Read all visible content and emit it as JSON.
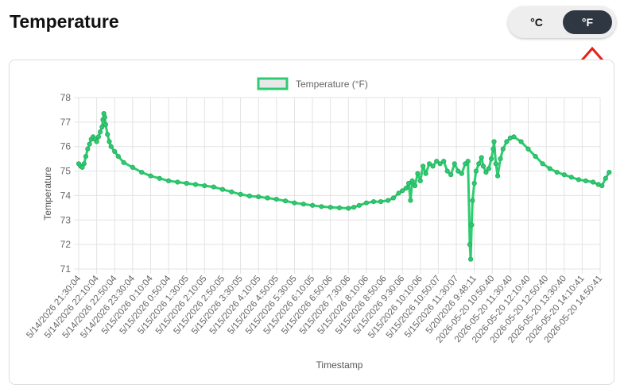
{
  "header": {
    "title": "Temperature",
    "unit_celsius": "°C",
    "unit_fahrenheit": "°F",
    "selected_unit": "°F"
  },
  "colors": {
    "series_line": "#2ecc71",
    "series_point": "#27ae60",
    "toggle_active_bg": "#2f3742",
    "annotation_arrow": "#e3201b"
  },
  "annotation": {
    "icon": "up-arrow-icon"
  },
  "chart_data": {
    "type": "line",
    "xlabel": "Timestamp",
    "ylabel": "Temperature",
    "ylim": [
      71,
      78
    ],
    "yticks": [
      71,
      72,
      73,
      74,
      75,
      76,
      77,
      78
    ],
    "grid": true,
    "legend_position": "top",
    "categories": [
      "5/14/2026  21:30:04",
      "5/14/2026  22:10:04",
      "5/14/2026  22:50:04",
      "5/14/2026  23:30:04",
      "5/15/2026  0:10:04",
      "5/15/2026  0:50:04",
      "5/15/2026  1:30:05",
      "5/15/2026  2:10:05",
      "5/15/2026  2:50:05",
      "5/15/2026  3:30:05",
      "5/15/2026  4:10:05",
      "5/15/2026  4:50:05",
      "5/15/2026  5:30:05",
      "5/15/2026  6:10:05",
      "5/15/2026  6:50:06",
      "5/15/2026  7:30:06",
      "5/15/2026  8:10:06",
      "5/15/2026  8:50:06",
      "5/15/2026  9:30:06",
      "5/15/2026  10:10:06",
      "5/15/2026  10:50:07",
      "5/15/2026  11:30:07",
      "5/20/2026  9:48:11",
      "2026-05-20 10:50:40",
      "2026-05-20 11:30:40",
      "2026-05-20 12:10:40",
      "2026-05-20 12:50:40",
      "2026-05-20 13:30:40",
      "2026-05-20 14:10:41",
      "2026-05-20 14:50:41"
    ],
    "series": [
      {
        "name": "Temperature (°F)",
        "points": [
          [
            0,
            75.3
          ],
          [
            0.1,
            75.2
          ],
          [
            0.2,
            75.15
          ],
          [
            0.3,
            75.3
          ],
          [
            0.4,
            75.6
          ],
          [
            0.5,
            75.9
          ],
          [
            0.6,
            76.1
          ],
          [
            0.7,
            76.3
          ],
          [
            0.8,
            76.4
          ],
          [
            0.9,
            76.3
          ],
          [
            1.0,
            76.2
          ],
          [
            1.1,
            76.4
          ],
          [
            1.2,
            76.6
          ],
          [
            1.3,
            76.8
          ],
          [
            1.35,
            77.1
          ],
          [
            1.4,
            77.35
          ],
          [
            1.45,
            77.2
          ],
          [
            1.5,
            76.9
          ],
          [
            1.6,
            76.5
          ],
          [
            1.7,
            76.2
          ],
          [
            1.8,
            76.0
          ],
          [
            2.0,
            75.8
          ],
          [
            2.2,
            75.6
          ],
          [
            2.5,
            75.35
          ],
          [
            3.0,
            75.15
          ],
          [
            3.5,
            74.95
          ],
          [
            4.0,
            74.8
          ],
          [
            4.5,
            74.7
          ],
          [
            5.0,
            74.6
          ],
          [
            5.5,
            74.55
          ],
          [
            6.0,
            74.5
          ],
          [
            6.5,
            74.45
          ],
          [
            7.0,
            74.4
          ],
          [
            7.5,
            74.35
          ],
          [
            8.0,
            74.25
          ],
          [
            8.5,
            74.15
          ],
          [
            9.0,
            74.05
          ],
          [
            9.5,
            73.98
          ],
          [
            10.0,
            73.95
          ],
          [
            10.5,
            73.9
          ],
          [
            11.0,
            73.85
          ],
          [
            11.5,
            73.78
          ],
          [
            12.0,
            73.7
          ],
          [
            12.5,
            73.65
          ],
          [
            13.0,
            73.6
          ],
          [
            13.5,
            73.55
          ],
          [
            14.0,
            73.52
          ],
          [
            14.5,
            73.5
          ],
          [
            15.0,
            73.48
          ],
          [
            15.3,
            73.52
          ],
          [
            15.6,
            73.6
          ],
          [
            16.0,
            73.7
          ],
          [
            16.4,
            73.75
          ],
          [
            16.8,
            73.75
          ],
          [
            17.2,
            73.8
          ],
          [
            17.5,
            73.9
          ],
          [
            17.8,
            74.1
          ],
          [
            18.0,
            74.2
          ],
          [
            18.2,
            74.3
          ],
          [
            18.35,
            74.5
          ],
          [
            18.45,
            73.8
          ],
          [
            18.55,
            74.6
          ],
          [
            18.7,
            74.4
          ],
          [
            18.85,
            74.9
          ],
          [
            19.0,
            74.6
          ],
          [
            19.15,
            75.2
          ],
          [
            19.3,
            74.9
          ],
          [
            19.5,
            75.3
          ],
          [
            19.7,
            75.2
          ],
          [
            19.9,
            75.4
          ],
          [
            20.1,
            75.3
          ],
          [
            20.3,
            75.4
          ],
          [
            20.5,
            75.0
          ],
          [
            20.7,
            74.85
          ],
          [
            20.9,
            75.3
          ],
          [
            21.1,
            75.0
          ],
          [
            21.3,
            74.9
          ],
          [
            21.5,
            75.3
          ],
          [
            21.65,
            75.4
          ],
          [
            21.75,
            72.0
          ],
          [
            21.8,
            71.4
          ],
          [
            21.85,
            72.8
          ],
          [
            21.9,
            73.8
          ],
          [
            22.0,
            74.5
          ],
          [
            22.1,
            75.0
          ],
          [
            22.25,
            75.3
          ],
          [
            22.4,
            75.55
          ],
          [
            22.5,
            75.2
          ],
          [
            22.65,
            74.95
          ],
          [
            22.8,
            75.1
          ],
          [
            22.95,
            75.5
          ],
          [
            23.05,
            75.9
          ],
          [
            23.1,
            76.2
          ],
          [
            23.2,
            75.3
          ],
          [
            23.3,
            74.8
          ],
          [
            23.45,
            75.5
          ],
          [
            23.6,
            75.9
          ],
          [
            23.8,
            76.2
          ],
          [
            24.0,
            76.35
          ],
          [
            24.2,
            76.4
          ],
          [
            24.6,
            76.2
          ],
          [
            25.0,
            75.9
          ],
          [
            25.4,
            75.6
          ],
          [
            25.8,
            75.3
          ],
          [
            26.2,
            75.1
          ],
          [
            26.6,
            74.95
          ],
          [
            27.0,
            74.85
          ],
          [
            27.4,
            74.75
          ],
          [
            27.8,
            74.65
          ],
          [
            28.2,
            74.6
          ],
          [
            28.6,
            74.55
          ],
          [
            28.9,
            74.45
          ],
          [
            29.1,
            74.4
          ],
          [
            29.3,
            74.7
          ],
          [
            29.5,
            74.95
          ]
        ]
      }
    ]
  }
}
